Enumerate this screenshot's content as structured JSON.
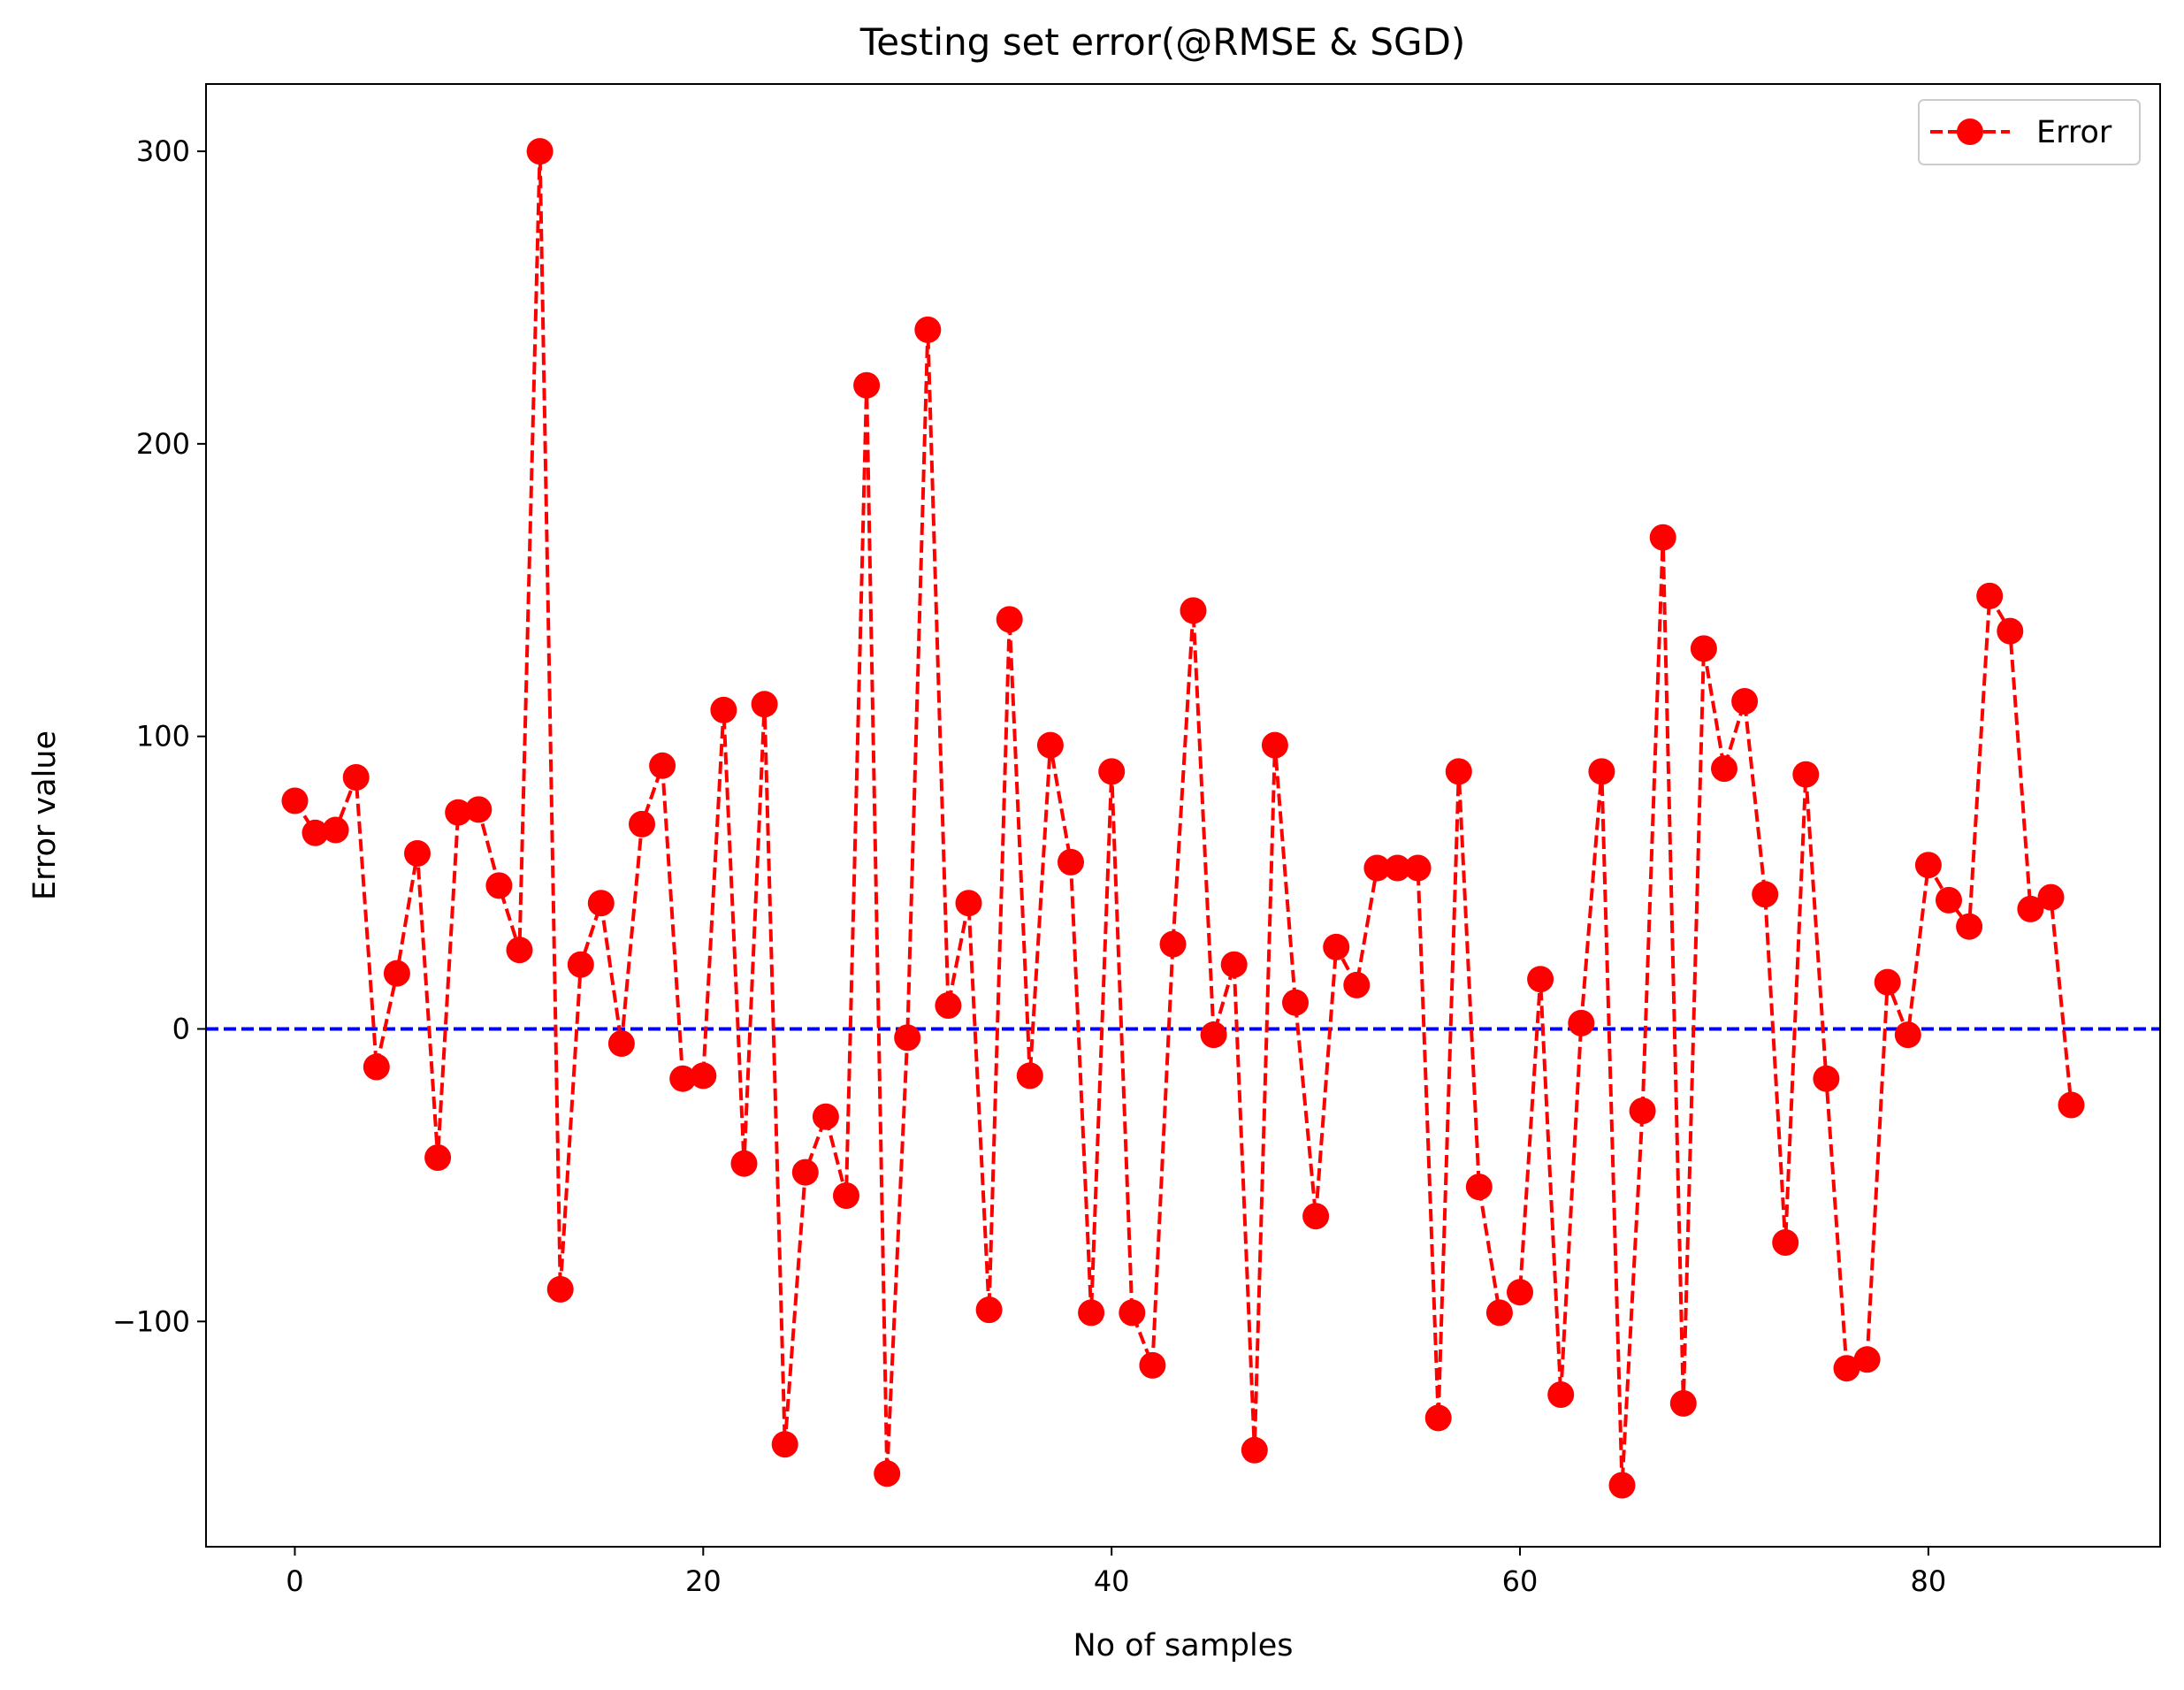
{
  "chart_data": {
    "type": "line",
    "title": "Testing set error(@RMSE & SGD)",
    "xlabel": "No of samples",
    "ylabel": "Error value",
    "xlim": [
      -4.35,
      91.35
    ],
    "ylim": [
      -177,
      323
    ],
    "xticks": [
      0,
      20,
      40,
      60,
      80
    ],
    "yticks": [
      -100,
      0,
      100,
      200,
      300
    ],
    "xtick_labels": [
      "0",
      "20",
      "40",
      "60",
      "80"
    ],
    "ytick_labels": [
      "−100",
      "0",
      "100",
      "200",
      "300"
    ],
    "grid": false,
    "legend_position": "top-right",
    "reference_line": {
      "y": 0,
      "color": "#0000ff",
      "style": "dashed"
    },
    "series": [
      {
        "name": "Error",
        "color": "#ff0000",
        "line_style": "dashed",
        "marker": "circle",
        "x": [
          0,
          1,
          2,
          3,
          4,
          5,
          6,
          7,
          8,
          9,
          10,
          11,
          12,
          13,
          14,
          15,
          16,
          17,
          18,
          19,
          20,
          21,
          22,
          23,
          24,
          25,
          26,
          27,
          28,
          29,
          30,
          31,
          32,
          33,
          34,
          35,
          36,
          37,
          38,
          39,
          40,
          41,
          42,
          43,
          44,
          45,
          46,
          47,
          48,
          49,
          50,
          51,
          52,
          53,
          54,
          55,
          56,
          57,
          58,
          59,
          60,
          61,
          62,
          63,
          64,
          65,
          66,
          67,
          68,
          69,
          70,
          71,
          72,
          73,
          74,
          75,
          76,
          77,
          78,
          79,
          80,
          81,
          82,
          83,
          84,
          85,
          86,
          87
        ],
        "values": [
          78,
          67,
          68,
          86,
          -13,
          19,
          60,
          -44,
          74,
          75,
          49,
          27,
          300,
          -89,
          22,
          43,
          -5,
          70,
          90,
          -17,
          -16,
          109,
          -46,
          111,
          -142,
          -49,
          -30,
          -57,
          220,
          -152,
          -3,
          239,
          8,
          43,
          -96,
          140,
          -16,
          97,
          57,
          -97,
          88,
          -97,
          -115,
          29,
          143,
          -2,
          22,
          -144,
          97,
          9,
          -64,
          28,
          15,
          55,
          55,
          55,
          -133,
          88,
          -54,
          -97,
          -90,
          17,
          -125,
          2,
          88,
          -156,
          -28,
          168,
          -128,
          130,
          89,
          112,
          46,
          -73,
          87,
          -17,
          -116,
          -113,
          16,
          -2,
          56,
          44,
          35,
          148,
          136,
          41,
          45,
          -26
        ]
      }
    ]
  }
}
